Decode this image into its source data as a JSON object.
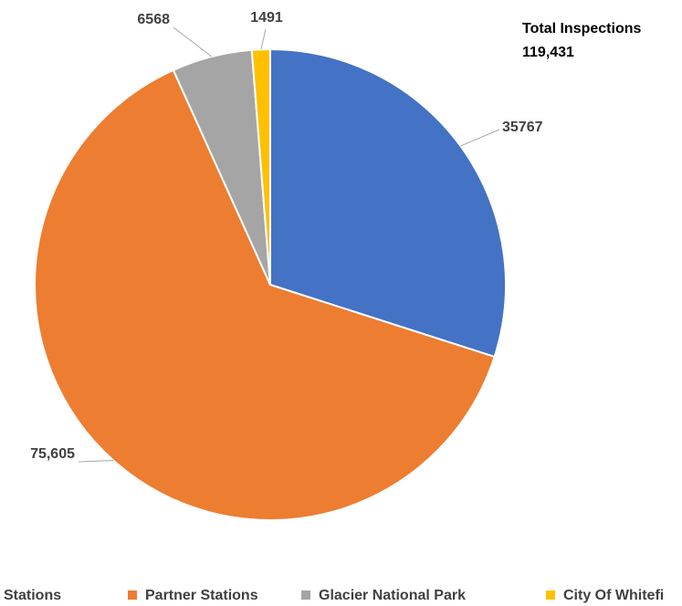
{
  "chart_data": {
    "type": "pie",
    "categories": [
      "Stations",
      "Partner Stations",
      "Glacier National Park",
      "City Of Whitefi"
    ],
    "values": [
      35767,
      75605,
      6568,
      1491
    ],
    "value_labels": [
      "35767",
      "75,605",
      "6568",
      "1491"
    ],
    "colors": [
      "#4472c4",
      "#ed7d31",
      "#a5a5a5",
      "#ffc000"
    ],
    "annotations": [
      "Total Inspections",
      "119,431"
    ],
    "legend": "bottom"
  }
}
